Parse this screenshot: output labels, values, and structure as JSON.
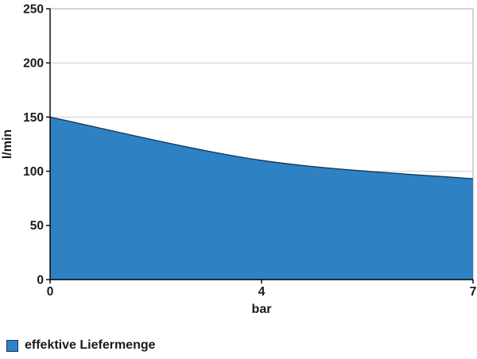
{
  "chart_data": {
    "type": "area",
    "x": [
      "0",
      "4",
      "7"
    ],
    "series": [
      {
        "name": "effektive Liefermenge",
        "values": [
          150,
          110,
          93
        ]
      }
    ],
    "xlabel": "bar",
    "ylabel": "l/min",
    "ylim": [
      0,
      250
    ],
    "y_ticks": [
      0,
      50,
      100,
      150,
      200,
      250
    ],
    "smoothed": true,
    "grid": true,
    "legend": {
      "position": "bottom-left",
      "entries": [
        {
          "label": "effektive Liefermenge",
          "swatch_color": "#2e82c3"
        }
      ]
    },
    "colors": {
      "area_fill": "#2e82c3",
      "line_stroke": "#17375e",
      "gridline": "#cfcfcf",
      "plot_border": "#a6a6a6",
      "axis_line": "#000000",
      "text": "#1a1a1a",
      "background": "#ffffff"
    }
  }
}
